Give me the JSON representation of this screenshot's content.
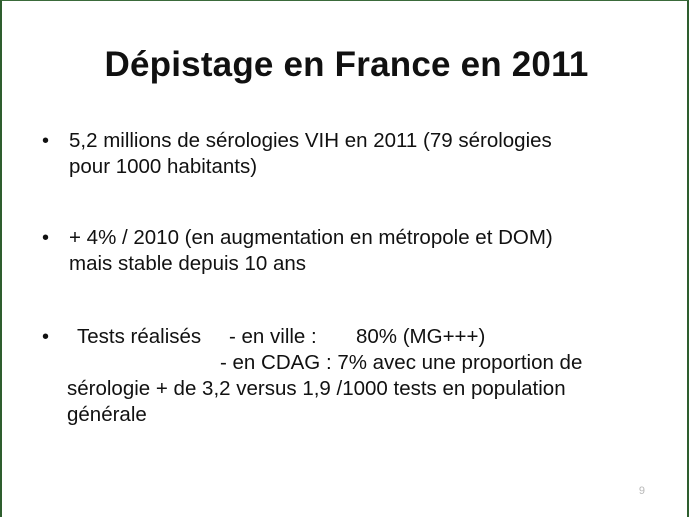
{
  "slide": {
    "title": "Dépistage en France en 2011",
    "bullets": [
      {
        "lines": [
          "5,2 millions de sérologies VIH en 2011 (79 sérologies",
          "pour 1000 habitants)"
        ]
      },
      {
        "lines": [
          "+ 4% / 2010 (en augmentation en métropole et DOM)",
          "mais stable depuis 10 ans"
        ]
      },
      {
        "label": "Tests réalisés",
        "ville_label": "- en ville   :",
        "ville_value": "80% (MG+++)",
        "cdag_line": "- en CDAG :  7%  avec une proportion de",
        "cont_lines": [
          "sérologie  + de 3,2 versus 1,9 /1000 tests en population",
          "générale"
        ]
      }
    ],
    "bullet_symbol": "•",
    "page_number": "9"
  }
}
